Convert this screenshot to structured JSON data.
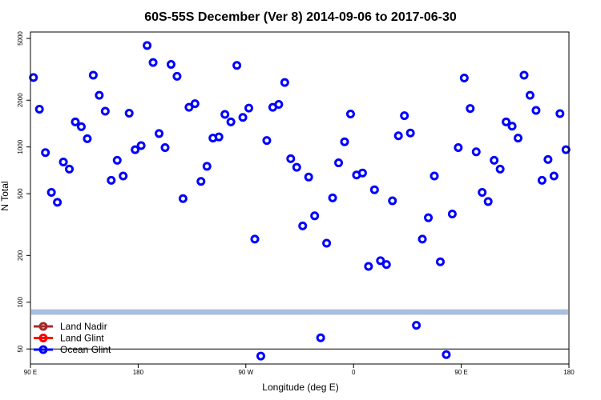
{
  "chart_data": {
    "type": "scatter",
    "title": "60S-55S December (Ver 8)   2014-09-06 to 2017-06-30",
    "xlabel": "Longitude (deg E)",
    "ylabel": "N Total",
    "x_ticks": [
      {
        "value": 90,
        "label": "90 E"
      },
      {
        "value": 180,
        "label": "180"
      },
      {
        "value": 270,
        "label": "90 W"
      },
      {
        "value": 360,
        "label": "0"
      },
      {
        "value": 450,
        "label": "90 E"
      },
      {
        "value": 540,
        "label": "180"
      }
    ],
    "xlim": [
      90,
      540
    ],
    "y_scale": "log",
    "y_ticks": [
      {
        "value": 50,
        "label": "50"
      },
      {
        "value": 100,
        "label": "100"
      },
      {
        "value": 200,
        "label": "200"
      },
      {
        "value": 500,
        "label": "500"
      },
      {
        "value": 1000,
        "label": "1000"
      },
      {
        "value": 2000,
        "label": "2000"
      },
      {
        "value": 5000,
        "label": "5000"
      }
    ],
    "ylim": [
      40,
      5500
    ],
    "reference_line_y": 50,
    "band": {
      "y_low": 83,
      "y_high": 90,
      "color": "#a8bfe0"
    },
    "legend": {
      "position": "bottom-left",
      "entries": [
        {
          "name": "Land Nadir",
          "color": "#a52a2a"
        },
        {
          "name": "Land Glint",
          "color": "#ff0000"
        },
        {
          "name": "Ocean Glint",
          "color": "#0000ff"
        }
      ]
    },
    "series": [
      {
        "name": "Ocean Glint",
        "color": "#0000ff",
        "points": [
          [
            92.5,
            2800
          ],
          [
            97.5,
            1750
          ],
          [
            102.5,
            920
          ],
          [
            107.5,
            510
          ],
          [
            112.5,
            440
          ],
          [
            117.5,
            800
          ],
          [
            122.5,
            720
          ],
          [
            127.5,
            1450
          ],
          [
            132.5,
            1350
          ],
          [
            137.5,
            1130
          ],
          [
            142.5,
            2900
          ],
          [
            147.5,
            2150
          ],
          [
            152.5,
            1700
          ],
          [
            157.5,
            610
          ],
          [
            162.5,
            820
          ],
          [
            167.5,
            650
          ],
          [
            172.5,
            1650
          ],
          [
            177.5,
            960
          ],
          [
            182.5,
            1020
          ],
          [
            187.5,
            4500
          ],
          [
            192.5,
            3500
          ],
          [
            197.5,
            1220
          ],
          [
            202.5,
            990
          ],
          [
            207.5,
            3400
          ],
          [
            212.5,
            2850
          ],
          [
            217.5,
            465
          ],
          [
            222.5,
            1800
          ],
          [
            227.5,
            1900
          ],
          [
            232.5,
            600
          ],
          [
            237.5,
            750
          ],
          [
            242.5,
            1140
          ],
          [
            247.5,
            1160
          ],
          [
            252.5,
            1620
          ],
          [
            257.5,
            1450
          ],
          [
            262.5,
            3350
          ],
          [
            267.5,
            1550
          ],
          [
            272.5,
            1780
          ],
          [
            277.5,
            255
          ],
          [
            282.5,
            45
          ],
          [
            287.5,
            1100
          ],
          [
            292.5,
            1800
          ],
          [
            297.5,
            1880
          ],
          [
            302.5,
            2600
          ],
          [
            307.5,
            840
          ],
          [
            312.5,
            740
          ],
          [
            317.5,
            310
          ],
          [
            322.5,
            640
          ],
          [
            327.5,
            360
          ],
          [
            332.5,
            59
          ],
          [
            337.5,
            240
          ],
          [
            342.5,
            470
          ],
          [
            347.5,
            790
          ],
          [
            352.5,
            1080
          ],
          [
            357.5,
            1630
          ],
          [
            362.5,
            660
          ],
          [
            367.5,
            680
          ],
          [
            372.5,
            170
          ],
          [
            377.5,
            530
          ],
          [
            382.5,
            185
          ],
          [
            387.5,
            175
          ],
          [
            392.5,
            450
          ],
          [
            397.5,
            1180
          ],
          [
            402.5,
            1590
          ],
          [
            407.5,
            1230
          ],
          [
            412.5,
            71
          ],
          [
            417.5,
            255
          ],
          [
            422.5,
            350
          ],
          [
            427.5,
            650
          ],
          [
            432.5,
            182
          ],
          [
            437.5,
            46
          ],
          [
            442.5,
            370
          ],
          [
            447.5,
            990
          ],
          [
            452.5,
            2780
          ],
          [
            457.5,
            1770
          ],
          [
            462.5,
            930
          ],
          [
            467.5,
            510
          ],
          [
            472.5,
            445
          ],
          [
            477.5,
            820
          ],
          [
            482.5,
            720
          ],
          [
            487.5,
            1450
          ],
          [
            492.5,
            1360
          ],
          [
            497.5,
            1140
          ],
          [
            502.5,
            2900
          ],
          [
            507.5,
            2150
          ],
          [
            512.5,
            1720
          ],
          [
            517.5,
            610
          ],
          [
            522.5,
            830
          ],
          [
            527.5,
            650
          ],
          [
            532.5,
            1640
          ],
          [
            537.5,
            960
          ]
        ]
      }
    ]
  }
}
